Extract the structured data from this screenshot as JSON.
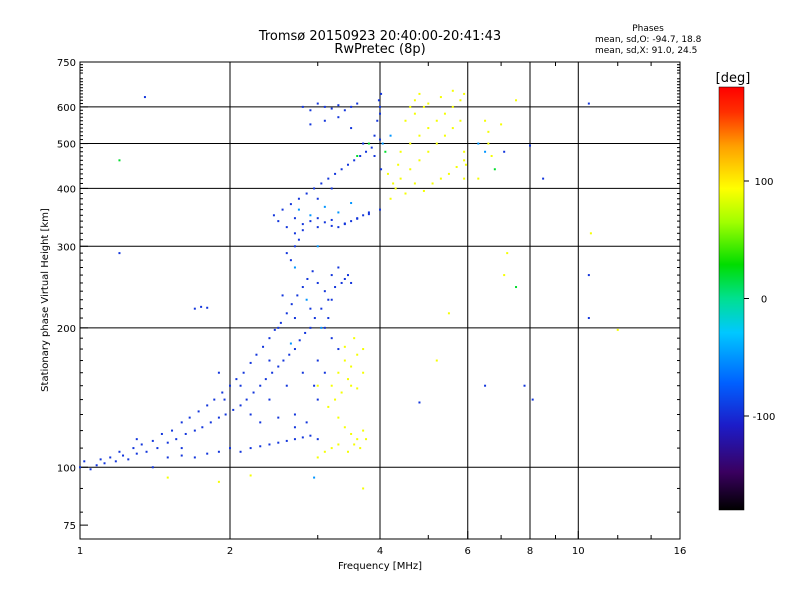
{
  "chart_data": {
    "type": "scatter",
    "title": "Tromsø 20150923 20:40:00-20:41:43",
    "subtitle": "RwPretec (8p)",
    "xlabel": "Frequency [MHz]",
    "ylabel": "Stationary phase Virtual Height [km]",
    "x_scale": "log",
    "y_scale": "log",
    "xlim": [
      1,
      16
    ],
    "ylim": [
      70,
      750
    ],
    "x_ticks": [
      1,
      2,
      4,
      6,
      8,
      10,
      16
    ],
    "x_tick_labels": [
      "1",
      "2",
      "4",
      "6",
      "8",
      "10",
      "16"
    ],
    "y_ticks": [
      75,
      100,
      200,
      300,
      400,
      500,
      600,
      750
    ],
    "y_tick_labels": [
      "75",
      "100",
      "200",
      "300",
      "400",
      "500",
      "600",
      "750"
    ],
    "grid_x": [
      2,
      4,
      6,
      8,
      10
    ],
    "grid_y": [
      100,
      200,
      300,
      400,
      500,
      600
    ],
    "phases_note": {
      "title": "Phases",
      "line1": "mean, sd,O: -94.7, 18.8",
      "line2": "mean, sd,X: 91.0, 24.5"
    },
    "colorbar": {
      "label": "[deg]",
      "range": [
        -180,
        180
      ],
      "ticks": [
        100,
        0,
        -100
      ],
      "tick_labels": [
        "100",
        "0",
        "-100"
      ],
      "colors": [
        "#000000",
        "#3a0060",
        "#1c1cc8",
        "#0060ff",
        "#00c8ff",
        "#00e090",
        "#00dd00",
        "#a0ff00",
        "#ffff00",
        "#ffa000",
        "#ff3000",
        "#ff0000"
      ]
    },
    "series": [
      {
        "name": "O",
        "phase_deg": -95,
        "points": [
          [
            1.0,
            100
          ],
          [
            1.02,
            103
          ],
          [
            1.05,
            99
          ],
          [
            1.08,
            101
          ],
          [
            1.1,
            104
          ],
          [
            1.12,
            102
          ],
          [
            1.15,
            105
          ],
          [
            1.18,
            103
          ],
          [
            1.2,
            108
          ],
          [
            1.22,
            106
          ],
          [
            1.25,
            104
          ],
          [
            1.28,
            110
          ],
          [
            1.3,
            107
          ],
          [
            1.33,
            112
          ],
          [
            1.36,
            108
          ],
          [
            1.4,
            114
          ],
          [
            1.43,
            110
          ],
          [
            1.46,
            118
          ],
          [
            1.5,
            113
          ],
          [
            1.53,
            120
          ],
          [
            1.56,
            115
          ],
          [
            1.6,
            125
          ],
          [
            1.63,
            118
          ],
          [
            1.66,
            128
          ],
          [
            1.7,
            120
          ],
          [
            1.73,
            132
          ],
          [
            1.76,
            122
          ],
          [
            1.8,
            136
          ],
          [
            1.83,
            125
          ],
          [
            1.86,
            140
          ],
          [
            1.9,
            128
          ],
          [
            1.93,
            145
          ],
          [
            1.96,
            130
          ],
          [
            2.0,
            150
          ],
          [
            2.03,
            133
          ],
          [
            2.06,
            155
          ],
          [
            2.1,
            136
          ],
          [
            2.13,
            160
          ],
          [
            2.16,
            140
          ],
          [
            2.2,
            168
          ],
          [
            2.23,
            145
          ],
          [
            2.26,
            175
          ],
          [
            2.3,
            150
          ],
          [
            2.33,
            182
          ],
          [
            2.36,
            155
          ],
          [
            2.4,
            190
          ],
          [
            2.43,
            160
          ],
          [
            2.46,
            198
          ],
          [
            2.5,
            165
          ],
          [
            2.53,
            205
          ],
          [
            2.56,
            170
          ],
          [
            2.6,
            215
          ],
          [
            2.63,
            175
          ],
          [
            2.66,
            225
          ],
          [
            2.7,
            180
          ],
          [
            2.73,
            235
          ],
          [
            2.76,
            188
          ],
          [
            2.8,
            245
          ],
          [
            2.83,
            195
          ],
          [
            2.86,
            255
          ],
          [
            2.9,
            200
          ],
          [
            2.93,
            265
          ],
          [
            2.96,
            210
          ],
          [
            3.0,
            250
          ],
          [
            3.05,
            220
          ],
          [
            3.1,
            240
          ],
          [
            3.15,
            230
          ],
          [
            3.2,
            260
          ],
          [
            3.25,
            245
          ],
          [
            3.3,
            270
          ],
          [
            3.35,
            250
          ],
          [
            3.4,
            255
          ],
          [
            3.45,
            260
          ],
          [
            3.5,
            250
          ],
          [
            2.0,
            110
          ],
          [
            2.1,
            108
          ],
          [
            2.2,
            110
          ],
          [
            2.3,
            111
          ],
          [
            2.4,
            112
          ],
          [
            2.5,
            113
          ],
          [
            2.6,
            114
          ],
          [
            2.7,
            115
          ],
          [
            2.8,
            116
          ],
          [
            2.9,
            117
          ],
          [
            1.5,
            105
          ],
          [
            1.6,
            106
          ],
          [
            1.7,
            105
          ],
          [
            1.8,
            107
          ],
          [
            1.9,
            108
          ],
          [
            1.7,
            220
          ],
          [
            1.75,
            222
          ],
          [
            1.8,
            221
          ],
          [
            2.2,
            130
          ],
          [
            2.4,
            140
          ],
          [
            2.6,
            150
          ],
          [
            2.8,
            160
          ],
          [
            3.0,
            170
          ],
          [
            2.5,
            200
          ],
          [
            2.7,
            210
          ],
          [
            2.9,
            220
          ],
          [
            3.1,
            200
          ],
          [
            3.2,
            190
          ],
          [
            2.45,
            350
          ],
          [
            2.5,
            340
          ],
          [
            2.55,
            360
          ],
          [
            2.6,
            330
          ],
          [
            2.65,
            370
          ],
          [
            2.7,
            345
          ],
          [
            2.75,
            380
          ],
          [
            2.8,
            335
          ],
          [
            2.85,
            390
          ],
          [
            2.9,
            340
          ],
          [
            2.95,
            400
          ],
          [
            3.0,
            345
          ],
          [
            3.05,
            410
          ],
          [
            3.1,
            338
          ],
          [
            3.15,
            420
          ],
          [
            3.2,
            342
          ],
          [
            3.25,
            430
          ],
          [
            3.3,
            330
          ],
          [
            3.35,
            440
          ],
          [
            3.4,
            335
          ],
          [
            3.45,
            450
          ],
          [
            3.5,
            340
          ],
          [
            3.55,
            460
          ],
          [
            3.6,
            345
          ],
          [
            3.65,
            470
          ],
          [
            3.7,
            350
          ],
          [
            3.75,
            480
          ],
          [
            3.8,
            355
          ],
          [
            3.85,
            490
          ],
          [
            3.9,
            520
          ],
          [
            3.95,
            560
          ],
          [
            4.0,
            600
          ],
          [
            4.02,
            640
          ],
          [
            4.0,
            580
          ],
          [
            3.98,
            620
          ],
          [
            2.8,
            600
          ],
          [
            2.9,
            590
          ],
          [
            3.0,
            610
          ],
          [
            3.1,
            600
          ],
          [
            3.2,
            595
          ],
          [
            3.3,
            605
          ],
          [
            3.4,
            590
          ],
          [
            3.5,
            600
          ],
          [
            3.6,
            610
          ],
          [
            2.9,
            550
          ],
          [
            3.1,
            560
          ],
          [
            3.3,
            570
          ],
          [
            3.5,
            540
          ],
          [
            3.7,
            500
          ],
          [
            2.7,
            320
          ],
          [
            2.75,
            310
          ],
          [
            2.8,
            325
          ],
          [
            3.0,
            330
          ],
          [
            3.2,
            332
          ],
          [
            3.4,
            336
          ],
          [
            3.6,
            344
          ],
          [
            3.8,
            352
          ],
          [
            4.0,
            360
          ],
          [
            1.35,
            630
          ],
          [
            1.2,
            290
          ],
          [
            2.6,
            290
          ],
          [
            2.65,
            280
          ],
          [
            2.7,
            300
          ],
          [
            4.0,
            510
          ],
          [
            3.9,
            470
          ],
          [
            4.02,
            440
          ],
          [
            3.2,
            400
          ],
          [
            3.0,
            380
          ],
          [
            2.95,
            150
          ],
          [
            3.0,
            140
          ],
          [
            3.1,
            160
          ],
          [
            2.7,
            130
          ],
          [
            2.85,
            125
          ],
          [
            3.15,
            210
          ],
          [
            3.2,
            230
          ],
          [
            3.3,
            180
          ],
          [
            2.55,
            235
          ],
          [
            2.4,
            170
          ],
          [
            2.1,
            150
          ],
          [
            1.9,
            160
          ],
          [
            1.95,
            140
          ],
          [
            2.3,
            125
          ],
          [
            2.5,
            128
          ],
          [
            2.7,
            122
          ],
          [
            3.0,
            115
          ],
          [
            1.4,
            100
          ],
          [
            1.6,
            110
          ],
          [
            1.3,
            115
          ],
          [
            6.5,
            150
          ],
          [
            7.8,
            150
          ],
          [
            8.5,
            420
          ],
          [
            10.5,
            610
          ],
          [
            10.5,
            260
          ],
          [
            10.5,
            210
          ],
          [
            8.0,
            495
          ],
          [
            7.1,
            480
          ],
          [
            4.8,
            138
          ],
          [
            8.1,
            140
          ]
        ]
      },
      {
        "name": "X",
        "phase_deg": 91,
        "points": [
          [
            4.3,
            400
          ],
          [
            4.4,
            420
          ],
          [
            4.5,
            390
          ],
          [
            4.6,
            440
          ],
          [
            4.7,
            410
          ],
          [
            4.8,
            460
          ],
          [
            4.9,
            395
          ],
          [
            5.0,
            480
          ],
          [
            5.1,
            410
          ],
          [
            5.2,
            500
          ],
          [
            5.3,
            420
          ],
          [
            5.4,
            520
          ],
          [
            5.5,
            430
          ],
          [
            5.6,
            540
          ],
          [
            5.7,
            445
          ],
          [
            5.8,
            560
          ],
          [
            5.9,
            460
          ],
          [
            4.4,
            480
          ],
          [
            4.6,
            500
          ],
          [
            4.8,
            520
          ],
          [
            5.0,
            540
          ],
          [
            5.2,
            560
          ],
          [
            5.4,
            580
          ],
          [
            5.6,
            600
          ],
          [
            5.8,
            620
          ],
          [
            4.6,
            600
          ],
          [
            4.7,
            620
          ],
          [
            4.8,
            640
          ],
          [
            5.0,
            610
          ],
          [
            5.3,
            630
          ],
          [
            5.6,
            650
          ],
          [
            5.9,
            640
          ],
          [
            4.5,
            560
          ],
          [
            4.7,
            580
          ],
          [
            4.9,
            600
          ],
          [
            4.2,
            380
          ],
          [
            4.25,
            410
          ],
          [
            4.35,
            450
          ],
          [
            4.15,
            430
          ],
          [
            5.9,
            420
          ],
          [
            5.95,
            450
          ],
          [
            5.9,
            480
          ],
          [
            3.2,
            150
          ],
          [
            3.3,
            160
          ],
          [
            3.4,
            170
          ],
          [
            3.5,
            165
          ],
          [
            3.6,
            175
          ],
          [
            3.7,
            180
          ],
          [
            3.55,
            190
          ],
          [
            3.45,
            155
          ],
          [
            3.35,
            145
          ],
          [
            3.25,
            140
          ],
          [
            3.5,
            150
          ],
          [
            3.7,
            160
          ],
          [
            3.6,
            148
          ],
          [
            3.4,
            182
          ],
          [
            3.3,
            128
          ],
          [
            3.4,
            122
          ],
          [
            3.5,
            118
          ],
          [
            3.6,
            115
          ],
          [
            3.7,
            120
          ],
          [
            3.2,
            110
          ],
          [
            3.3,
            112
          ],
          [
            3.45,
            108
          ],
          [
            3.55,
            112
          ],
          [
            3.65,
            110
          ],
          [
            3.75,
            115
          ],
          [
            3.1,
            108
          ],
          [
            3.0,
            105
          ],
          [
            3.15,
            135
          ],
          [
            3.0,
            150
          ],
          [
            6.5,
            560
          ],
          [
            6.6,
            500
          ],
          [
            6.7,
            470
          ],
          [
            6.6,
            530
          ],
          [
            7.0,
            550
          ],
          [
            7.5,
            620
          ],
          [
            7.2,
            290
          ],
          [
            7.1,
            260
          ],
          [
            6.3,
            420
          ],
          [
            5.5,
            215
          ],
          [
            3.7,
            90
          ],
          [
            1.5,
            95
          ],
          [
            1.9,
            93
          ],
          [
            2.2,
            96
          ],
          [
            12.0,
            198
          ],
          [
            10.6,
            320
          ],
          [
            5.2,
            170
          ]
        ]
      },
      {
        "name": "",
        "phase_deg": 20,
        "points": [
          [
            1.2,
            460
          ],
          [
            3.6,
            470
          ],
          [
            4.1,
            480
          ],
          [
            3.8,
            500
          ],
          [
            6.8,
            440
          ],
          [
            7.5,
            245
          ]
        ]
      },
      {
        "name": "",
        "phase_deg": -50,
        "points": [
          [
            2.9,
            350
          ],
          [
            3.1,
            365
          ],
          [
            3.3,
            355
          ],
          [
            3.5,
            372
          ],
          [
            2.75,
            360
          ],
          [
            3.0,
            300
          ],
          [
            2.7,
            270
          ],
          [
            2.85,
            230
          ],
          [
            3.05,
            200
          ],
          [
            2.65,
            185
          ],
          [
            4.05,
            500
          ],
          [
            4.2,
            520
          ],
          [
            6.5,
            480
          ],
          [
            6.3,
            500
          ],
          [
            2.95,
            95
          ]
        ]
      }
    ]
  }
}
